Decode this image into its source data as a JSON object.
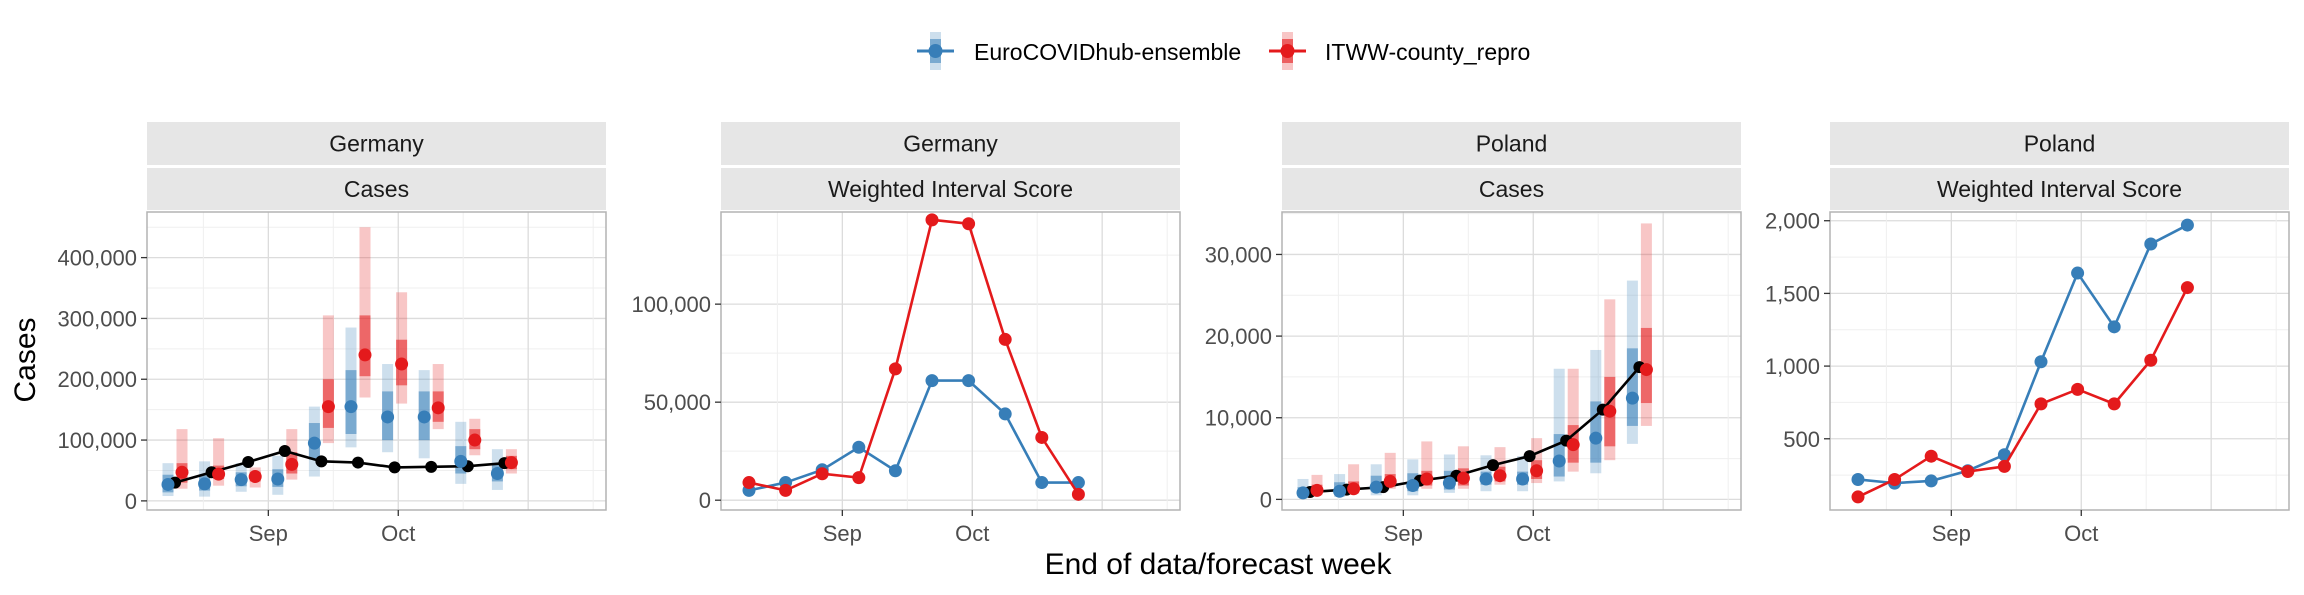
{
  "legend": {
    "items": [
      {
        "name": "EuroCOVIDhub-ensemble",
        "color": "#377EB8"
      },
      {
        "name": "ITWW-county_repro",
        "color": "#E41A1C"
      }
    ]
  },
  "axis_titles": {
    "y": "Cases",
    "x": "End of data/forecast week"
  },
  "chart_data": [
    {
      "type": "line",
      "panel": "Germany / Cases",
      "strip": [
        "Germany",
        "Cases"
      ],
      "x_ticks": [
        "Sep",
        "Oct"
      ],
      "y_ticks": [
        "0",
        "100,000",
        "200,000",
        "300,000",
        "400,000"
      ],
      "y_tick_values": [
        0,
        100000,
        200000,
        300000,
        400000
      ],
      "ylim": [
        -15000,
        475000
      ],
      "grid": true,
      "truth": [
        30000,
        47000,
        64000,
        82000,
        65000,
        63000,
        55000,
        56000,
        57000,
        62000
      ],
      "series": [
        {
          "name": "EuroCOVIDhub-ensemble",
          "median": [
            27000,
            28000,
            35000,
            36000,
            95000,
            155000,
            138000,
            138000,
            65000,
            45000
          ],
          "inner": [
            [
              14000,
              43000
            ],
            [
              17000,
              42000
            ],
            [
              24000,
              47000
            ],
            [
              23000,
              52000
            ],
            [
              68000,
              128000
            ],
            [
              110000,
              215000
            ],
            [
              100000,
              180000
            ],
            [
              100000,
              180000
            ],
            [
              45000,
              90000
            ],
            [
              32000,
              62000
            ]
          ],
          "outer": [
            [
              8000,
              62000
            ],
            [
              7000,
              65000
            ],
            [
              15000,
              62000
            ],
            [
              10000,
              74000
            ],
            [
              40000,
              155000
            ],
            [
              88000,
              285000
            ],
            [
              80000,
              225000
            ],
            [
              70000,
              215000
            ],
            [
              28000,
              130000
            ],
            [
              18000,
              85000
            ]
          ]
        },
        {
          "name": "ITWW-county_repro",
          "median": [
            47000,
            44000,
            40000,
            60000,
            155000,
            240000,
            225000,
            153000,
            100000,
            63000
          ],
          "inner": [
            [
              30000,
              62000
            ],
            [
              36000,
              58000
            ],
            [
              32000,
              48000
            ],
            [
              45000,
              80000
            ],
            [
              120000,
              200000
            ],
            [
              205000,
              305000
            ],
            [
              190000,
              265000
            ],
            [
              130000,
              180000
            ],
            [
              85000,
              118000
            ],
            [
              52000,
              74000
            ]
          ],
          "outer": [
            [
              20000,
              118000
            ],
            [
              25000,
              103000
            ],
            [
              22000,
              55000
            ],
            [
              35000,
              118000
            ],
            [
              95000,
              305000
            ],
            [
              170000,
              450000
            ],
            [
              160000,
              343000
            ],
            [
              118000,
              225000
            ],
            [
              75000,
              135000
            ],
            [
              45000,
              85000
            ]
          ]
        }
      ]
    },
    {
      "type": "line",
      "panel": "Germany / Weighted Interval Score",
      "strip": [
        "Germany",
        "Weighted Interval Score"
      ],
      "x_ticks": [
        "Sep",
        "Oct"
      ],
      "y_ticks": [
        "0",
        "50,000",
        "100,000"
      ],
      "y_tick_values": [
        0,
        50000,
        100000
      ],
      "ylim": [
        -5000,
        147000
      ],
      "grid": true,
      "series": [
        {
          "name": "EuroCOVIDhub-ensemble",
          "values": [
            5000,
            9000,
            15500,
            27000,
            15000,
            61000,
            61000,
            44000,
            9000,
            9000
          ]
        },
        {
          "name": "ITWW-county_repro",
          "values": [
            9000,
            5000,
            13500,
            11500,
            67000,
            143000,
            141000,
            82000,
            32000,
            3000
          ]
        }
      ]
    },
    {
      "type": "line",
      "panel": "Poland / Cases",
      "strip": [
        "Poland",
        "Cases"
      ],
      "x_ticks": [
        "Sep",
        "Oct"
      ],
      "y_ticks": [
        "0",
        "10,000",
        "20,000",
        "30,000"
      ],
      "y_tick_values": [
        0,
        10000,
        20000,
        30000
      ],
      "ylim": [
        -1300,
        35200
      ],
      "grid": true,
      "truth": [
        900,
        1200,
        1500,
        2300,
        2900,
        4200,
        5300,
        7200,
        11000,
        16200
      ],
      "series": [
        {
          "name": "EuroCOVIDhub-ensemble",
          "median": [
            800,
            1000,
            1500,
            1700,
            2000,
            2500,
            2500,
            4700,
            7500,
            12400
          ],
          "inner": [
            [
              500,
              1500
            ],
            [
              600,
              2100
            ],
            [
              1000,
              2900
            ],
            [
              1000,
              3200
            ],
            [
              1200,
              3500
            ],
            [
              1800,
              3400
            ],
            [
              1800,
              3400
            ],
            [
              2800,
              8000
            ],
            [
              4500,
              12000
            ],
            [
              9000,
              18500
            ]
          ],
          "outer": [
            [
              200,
              2500
            ],
            [
              300,
              3100
            ],
            [
              500,
              4300
            ],
            [
              500,
              4900
            ],
            [
              800,
              5500
            ],
            [
              1000,
              5400
            ],
            [
              1000,
              5300
            ],
            [
              2200,
              16000
            ],
            [
              3200,
              18300
            ],
            [
              6800,
              26800
            ]
          ]
        },
        {
          "name": "ITWW-county_repro",
          "median": [
            1100,
            1300,
            2200,
            2500,
            2600,
            2900,
            3500,
            6700,
            10800,
            15900
          ],
          "inner": [
            [
              700,
              1800
            ],
            [
              900,
              2200
            ],
            [
              1600,
              3100
            ],
            [
              1700,
              3500
            ],
            [
              1700,
              3800
            ],
            [
              2200,
              4000
            ],
            [
              2500,
              4800
            ],
            [
              4500,
              9100
            ],
            [
              6500,
              15000
            ],
            [
              11800,
              21000
            ]
          ],
          "outer": [
            [
              500,
              3000
            ],
            [
              700,
              4300
            ],
            [
              1300,
              5700
            ],
            [
              1300,
              7100
            ],
            [
              1300,
              6500
            ],
            [
              1800,
              6400
            ],
            [
              2000,
              7500
            ],
            [
              3400,
              16000
            ],
            [
              4800,
              24500
            ],
            [
              9000,
              33800
            ]
          ]
        }
      ]
    },
    {
      "type": "line",
      "panel": "Poland / Weighted Interval Score",
      "strip": [
        "Poland",
        "Weighted Interval Score"
      ],
      "x_ticks": [
        "Sep",
        "Oct"
      ],
      "y_ticks": [
        "500",
        "1,000",
        "1,500",
        "2,000"
      ],
      "y_tick_values": [
        500,
        1000,
        1500,
        2000
      ],
      "ylim": [
        10,
        2060
      ],
      "grid": true,
      "series": [
        {
          "name": "EuroCOVIDhub-ensemble",
          "values": [
            220,
            195,
            210,
            280,
            390,
            1030,
            1640,
            1270,
            1840,
            1970
          ]
        },
        {
          "name": "ITWW-county_repro",
          "values": [
            100,
            220,
            380,
            275,
            310,
            740,
            840,
            740,
            1040,
            1540
          ]
        }
      ]
    }
  ]
}
